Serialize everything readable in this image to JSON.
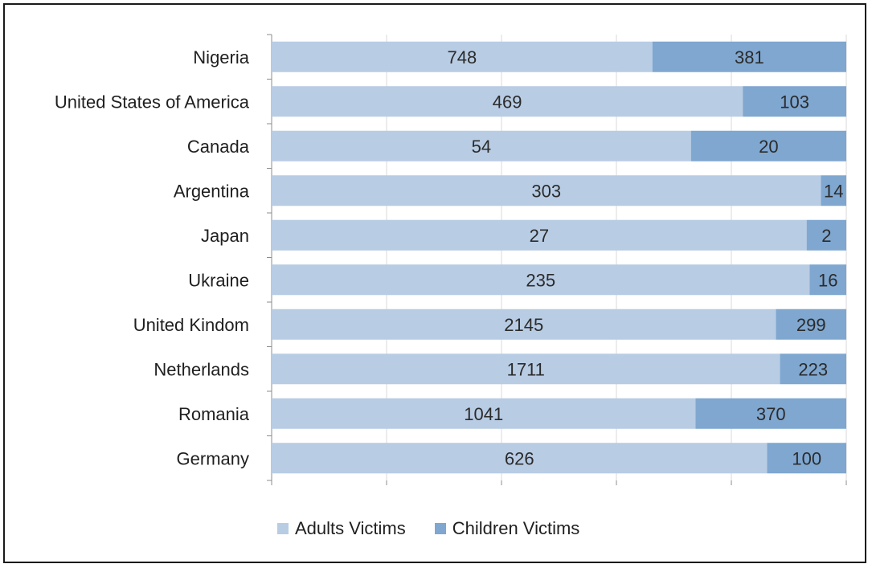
{
  "chart_data": {
    "type": "bar",
    "orientation": "horizontal",
    "stacked": "percent",
    "categories": [
      "Nigeria",
      "United States of America",
      "Canada",
      "Argentina",
      "Japan",
      "Ukraine",
      "United Kindom",
      "Netherlands",
      "Romania",
      "Germany"
    ],
    "series": [
      {
        "name": "Adults Victims",
        "color": "#b8cce4",
        "values": [
          748,
          469,
          54,
          303,
          27,
          235,
          2145,
          1711,
          1041,
          626
        ]
      },
      {
        "name": "Children Victims",
        "color": "#7fa7d0",
        "values": [
          381,
          103,
          20,
          14,
          2,
          16,
          299,
          223,
          370,
          100
        ]
      }
    ],
    "grid": true,
    "legend_position": "bottom"
  }
}
